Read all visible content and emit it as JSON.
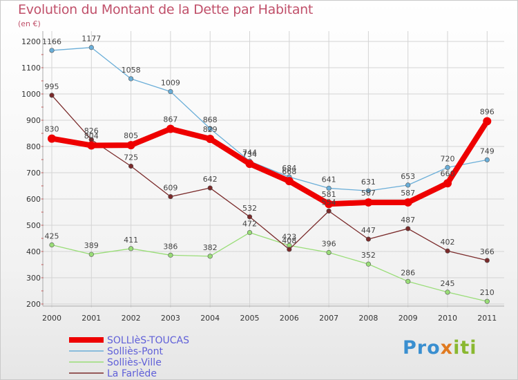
{
  "title": "Evolution du Montant de la Dette par Habitant",
  "subtitle": "(en €)",
  "logo": "Proxiti",
  "chart_data": {
    "type": "line",
    "title": "Evolution du Montant de la Dette par Habitant",
    "subtitle": "(en €)",
    "x": [
      "2000",
      "2001",
      "2002",
      "2003",
      "2004",
      "2005",
      "2006",
      "2007",
      "2008",
      "2009",
      "2010",
      "2011"
    ],
    "ylim": [
      200,
      1200
    ],
    "yticks": [
      200,
      300,
      400,
      500,
      600,
      700,
      800,
      900,
      1000,
      1100,
      1200
    ],
    "grid": true,
    "legend_position": "bottom-left",
    "series": [
      {
        "name": "SOLLIèS-TOUCAS",
        "color": "#ee0000",
        "values": [
          830,
          804,
          805,
          867,
          829,
          734,
          668,
          581,
          587,
          587,
          660,
          896
        ],
        "emphasis": true
      },
      {
        "name": "Solliès-Pont",
        "color": "#6aaed8",
        "values": [
          1166,
          1177,
          1058,
          1009,
          868,
          744,
          684,
          641,
          631,
          653,
          720,
          749
        ]
      },
      {
        "name": "Solliès-Ville",
        "color": "#99dd77",
        "values": [
          425,
          389,
          411,
          386,
          382,
          472,
          423,
          396,
          352,
          286,
          245,
          210
        ]
      },
      {
        "name": "La Farlède",
        "color": "#7a2a2a",
        "values": [
          995,
          826,
          725,
          609,
          642,
          532,
          408,
          554,
          447,
          487,
          402,
          366
        ]
      }
    ]
  }
}
